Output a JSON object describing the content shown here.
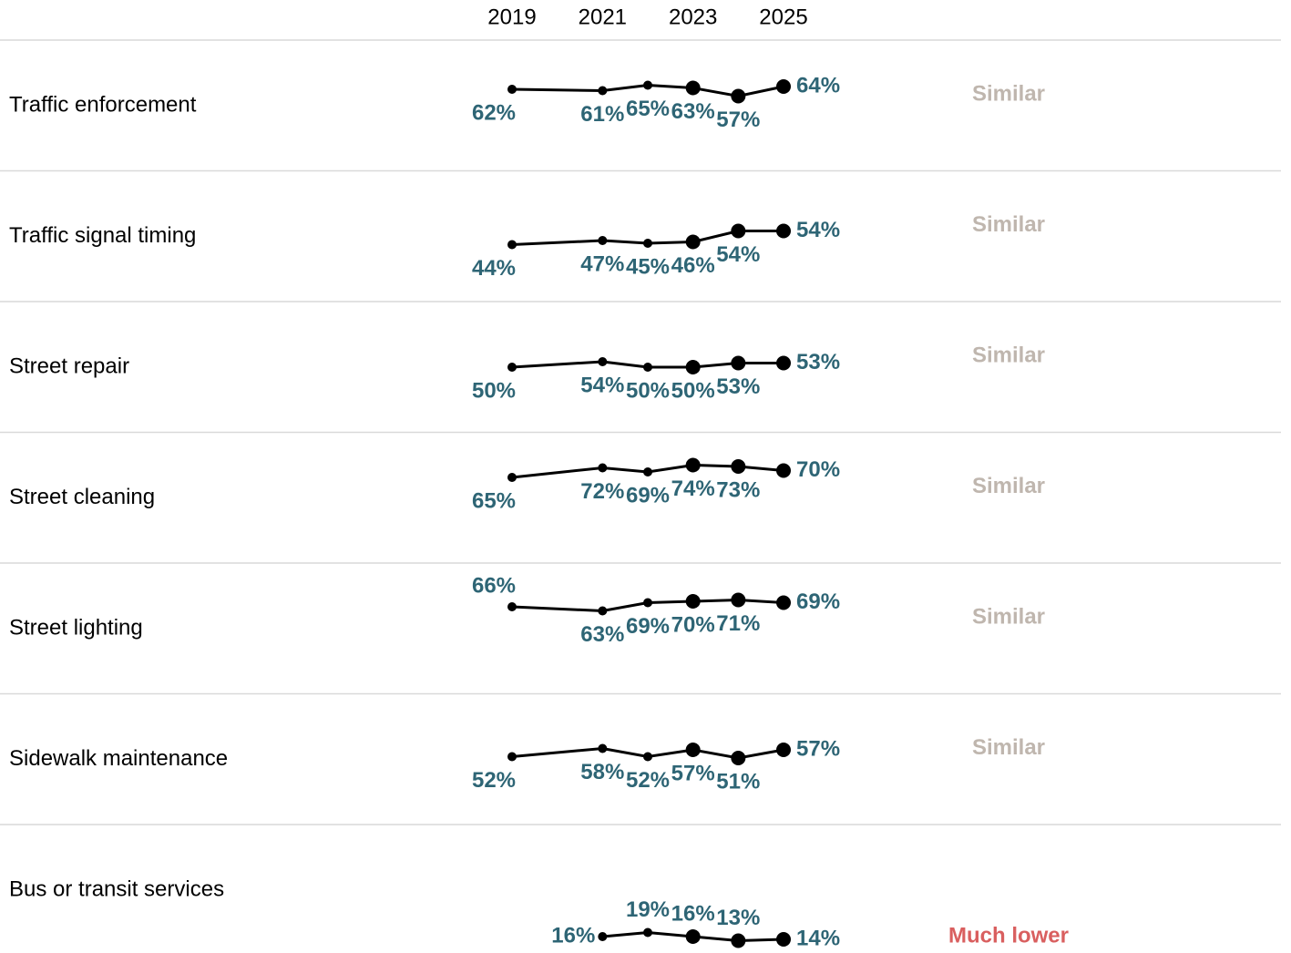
{
  "chart_data": {
    "type": "line",
    "x": [
      2019,
      2021,
      2022,
      2023,
      2024,
      2025
    ],
    "xlim": [
      2019,
      2025
    ],
    "xticks": [
      2019,
      2021,
      2023,
      2025
    ],
    "ylim": [
      0,
      100
    ],
    "line_color": "#000000",
    "label_color": "#2e6575",
    "rows": [
      {
        "name": "Traffic enforcement",
        "values": [
          62,
          61,
          65,
          63,
          57,
          64
        ],
        "value_labels": [
          "62%",
          "61%",
          "65%",
          "63%",
          "57%",
          "64%"
        ],
        "status": "Similar",
        "status_color": "#bfb6ae"
      },
      {
        "name": "Traffic signal timing",
        "values": [
          44,
          47,
          45,
          46,
          54,
          54
        ],
        "value_labels": [
          "44%",
          "47%",
          "45%",
          "46%",
          "54%",
          "54%"
        ],
        "status": "Similar",
        "status_color": "#bfb6ae"
      },
      {
        "name": "Street repair",
        "values": [
          50,
          54,
          50,
          50,
          53,
          53
        ],
        "value_labels": [
          "50%",
          "54%",
          "50%",
          "50%",
          "53%",
          "53%"
        ],
        "status": "Similar",
        "status_color": "#bfb6ae"
      },
      {
        "name": "Street cleaning",
        "values": [
          65,
          72,
          69,
          74,
          73,
          70
        ],
        "value_labels": [
          "65%",
          "72%",
          "69%",
          "74%",
          "73%",
          "70%"
        ],
        "status": "Similar",
        "status_color": "#bfb6ae"
      },
      {
        "name": "Street lighting",
        "values": [
          66,
          63,
          69,
          70,
          71,
          69
        ],
        "value_labels": [
          "66%",
          "63%",
          "69%",
          "70%",
          "71%",
          "69%"
        ],
        "status": "Similar",
        "status_color": "#bfb6ae"
      },
      {
        "name": "Sidewalk maintenance",
        "values": [
          52,
          58,
          52,
          57,
          51,
          57
        ],
        "value_labels": [
          "52%",
          "58%",
          "52%",
          "57%",
          "51%",
          "57%"
        ],
        "status": "Similar",
        "status_color": "#bfb6ae"
      },
      {
        "name": "Bus or transit services",
        "values": [
          null,
          16,
          19,
          16,
          13,
          14
        ],
        "value_labels": [
          null,
          "16%",
          "19%",
          "16%",
          "13%",
          "14%"
        ],
        "status": "Much lower",
        "status_color": "#d95f5f"
      }
    ]
  }
}
